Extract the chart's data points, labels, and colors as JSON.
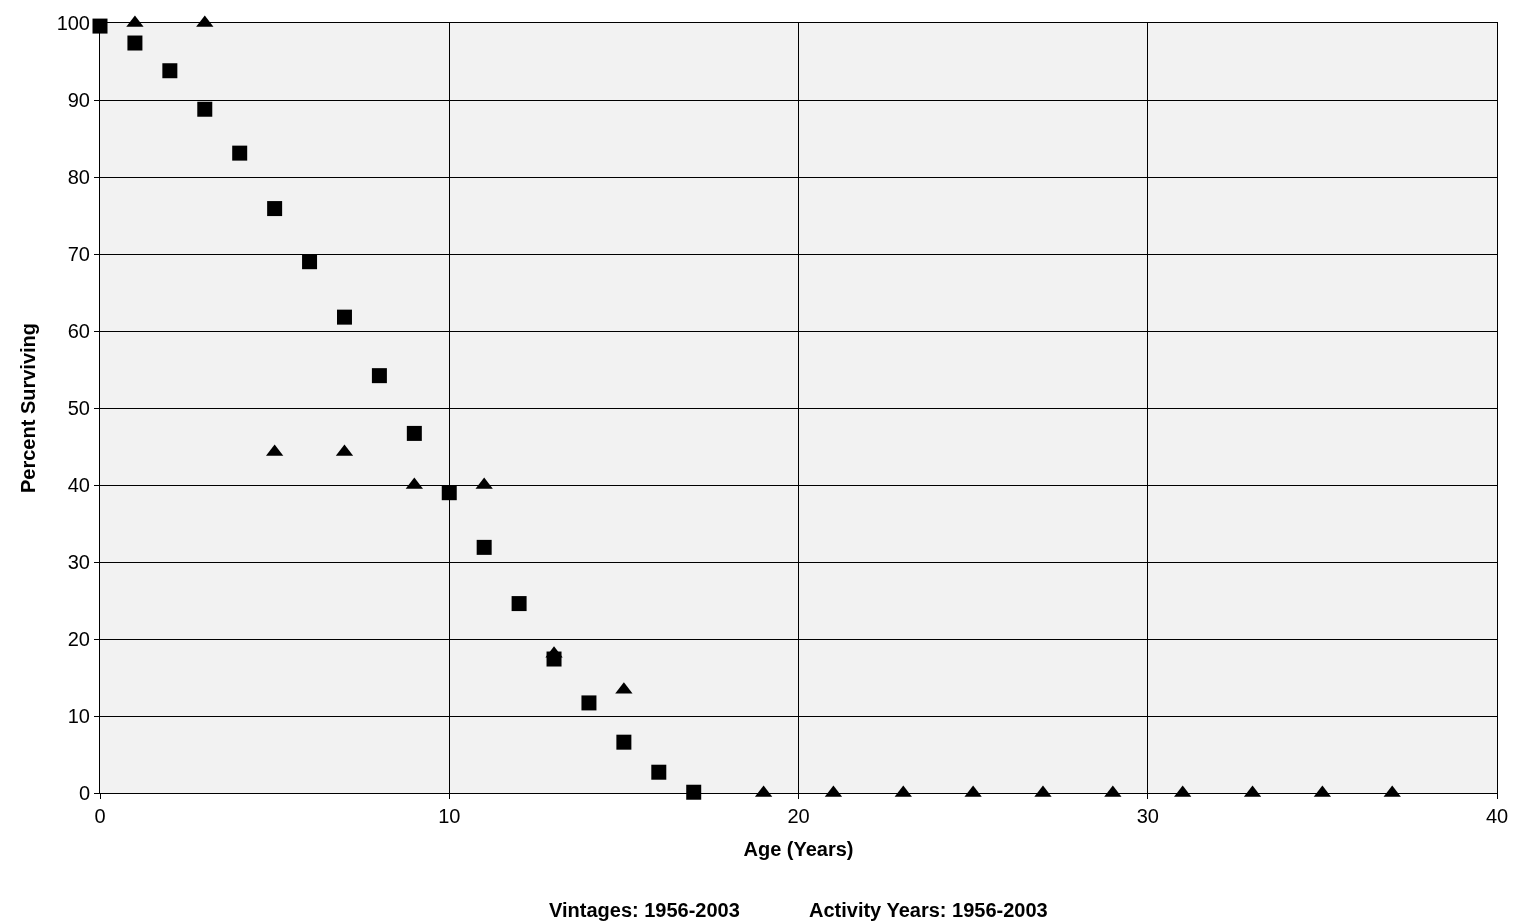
{
  "chart_data": {
    "type": "scatter",
    "xlabel": "Age (Years)",
    "ylabel": "Percent Surviving",
    "annotations": [
      "Vintages: 1956-2003",
      "Activity Years: 1956-2003"
    ],
    "xlim": [
      0,
      40
    ],
    "xticks": [
      0,
      10,
      20,
      30,
      40
    ],
    "ylim": [
      0,
      100
    ],
    "yticks": [
      0,
      10,
      20,
      30,
      40,
      50,
      60,
      70,
      80,
      90,
      100
    ],
    "grid": true,
    "legend": false,
    "series": [
      {
        "color": "#000000",
        "marker": "square",
        "x": [
          0,
          1,
          2,
          3,
          4,
          5,
          6,
          7,
          8,
          9,
          10,
          11,
          12,
          13,
          14,
          15,
          16,
          17
        ],
        "values": [
          99.6,
          97.4,
          93.8,
          88.8,
          83.1,
          75.9,
          69.0,
          61.8,
          54.2,
          46.7,
          39.0,
          31.9,
          24.6,
          17.4,
          11.7,
          6.6,
          2.7,
          0.1
        ]
      },
      {
        "color": "#000000",
        "marker": "triangle",
        "x": [
          1,
          3,
          5,
          7,
          9,
          11,
          13,
          15,
          19,
          21,
          23,
          25,
          27,
          29,
          31,
          33,
          35,
          37
        ],
        "values": [
          100,
          100,
          44.3,
          44.3,
          40.0,
          40.0,
          18.1,
          13.4,
          0,
          0,
          0,
          0,
          0,
          0,
          0,
          0,
          0,
          0
        ]
      }
    ]
  }
}
